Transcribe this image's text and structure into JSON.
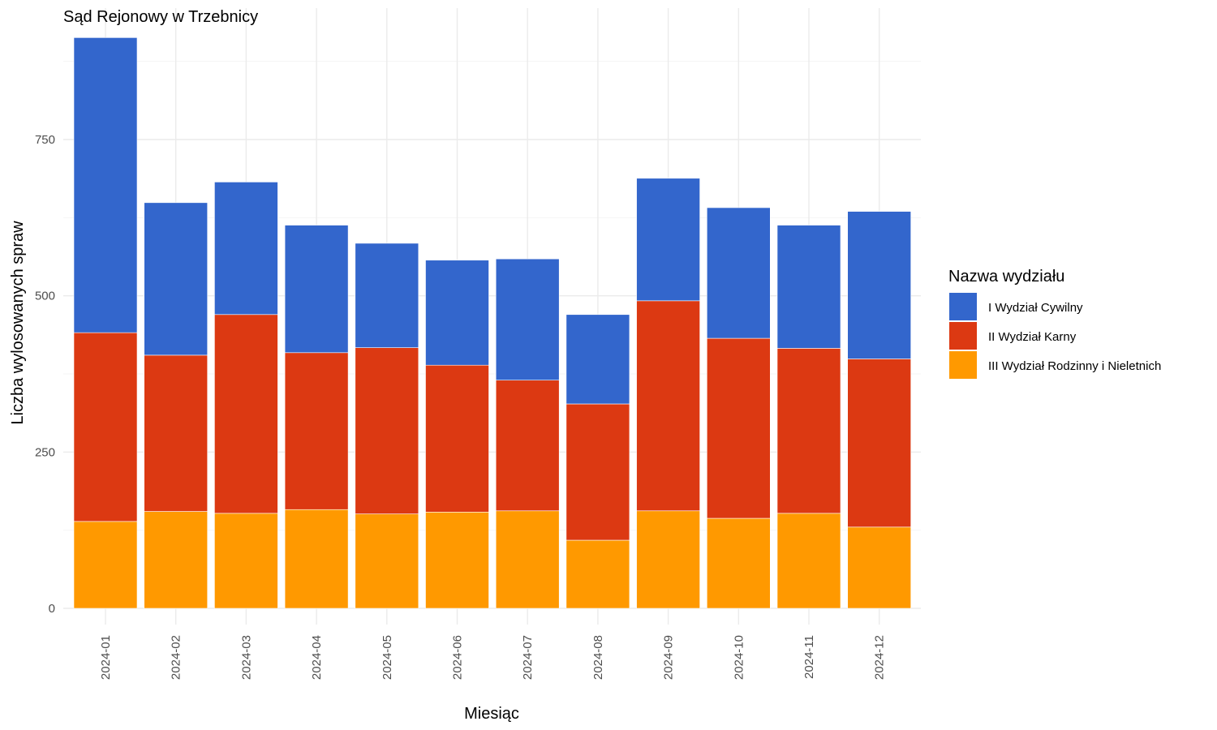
{
  "chart_data": {
    "type": "bar",
    "stacked": true,
    "title": "Sąd Rejonowy w Trzebnicy",
    "xlabel": "Miesiąc",
    "ylabel": "Liczba wylosowanych spraw",
    "ylim": [
      0,
      960
    ],
    "yticks": [
      0,
      250,
      500,
      750
    ],
    "grid": true,
    "legend": {
      "title": "Nazwa wydziału",
      "placement": "right"
    },
    "categories": [
      "2024-01",
      "2024-02",
      "2024-03",
      "2024-04",
      "2024-05",
      "2024-06",
      "2024-07",
      "2024-08",
      "2024-09",
      "2024-10",
      "2024-11",
      "2024-12"
    ],
    "series": [
      {
        "name": "III Wydział Rodzinny i Nieletnich",
        "color": "#FF9900",
        "values": [
          139,
          155,
          152,
          158,
          151,
          154,
          156,
          109,
          156,
          144,
          152,
          130
        ]
      },
      {
        "name": "II Wydział Karny",
        "color": "#DC3912",
        "values": [
          302,
          250,
          318,
          251,
          266,
          235,
          209,
          218,
          336,
          288,
          264,
          269
        ]
      },
      {
        "name": "I Wydział Cywilny",
        "color": "#3366CC",
        "values": [
          472,
          244,
          212,
          204,
          167,
          168,
          194,
          143,
          196,
          209,
          197,
          236
        ]
      }
    ]
  },
  "legend_order": [
    2,
    1,
    0
  ]
}
